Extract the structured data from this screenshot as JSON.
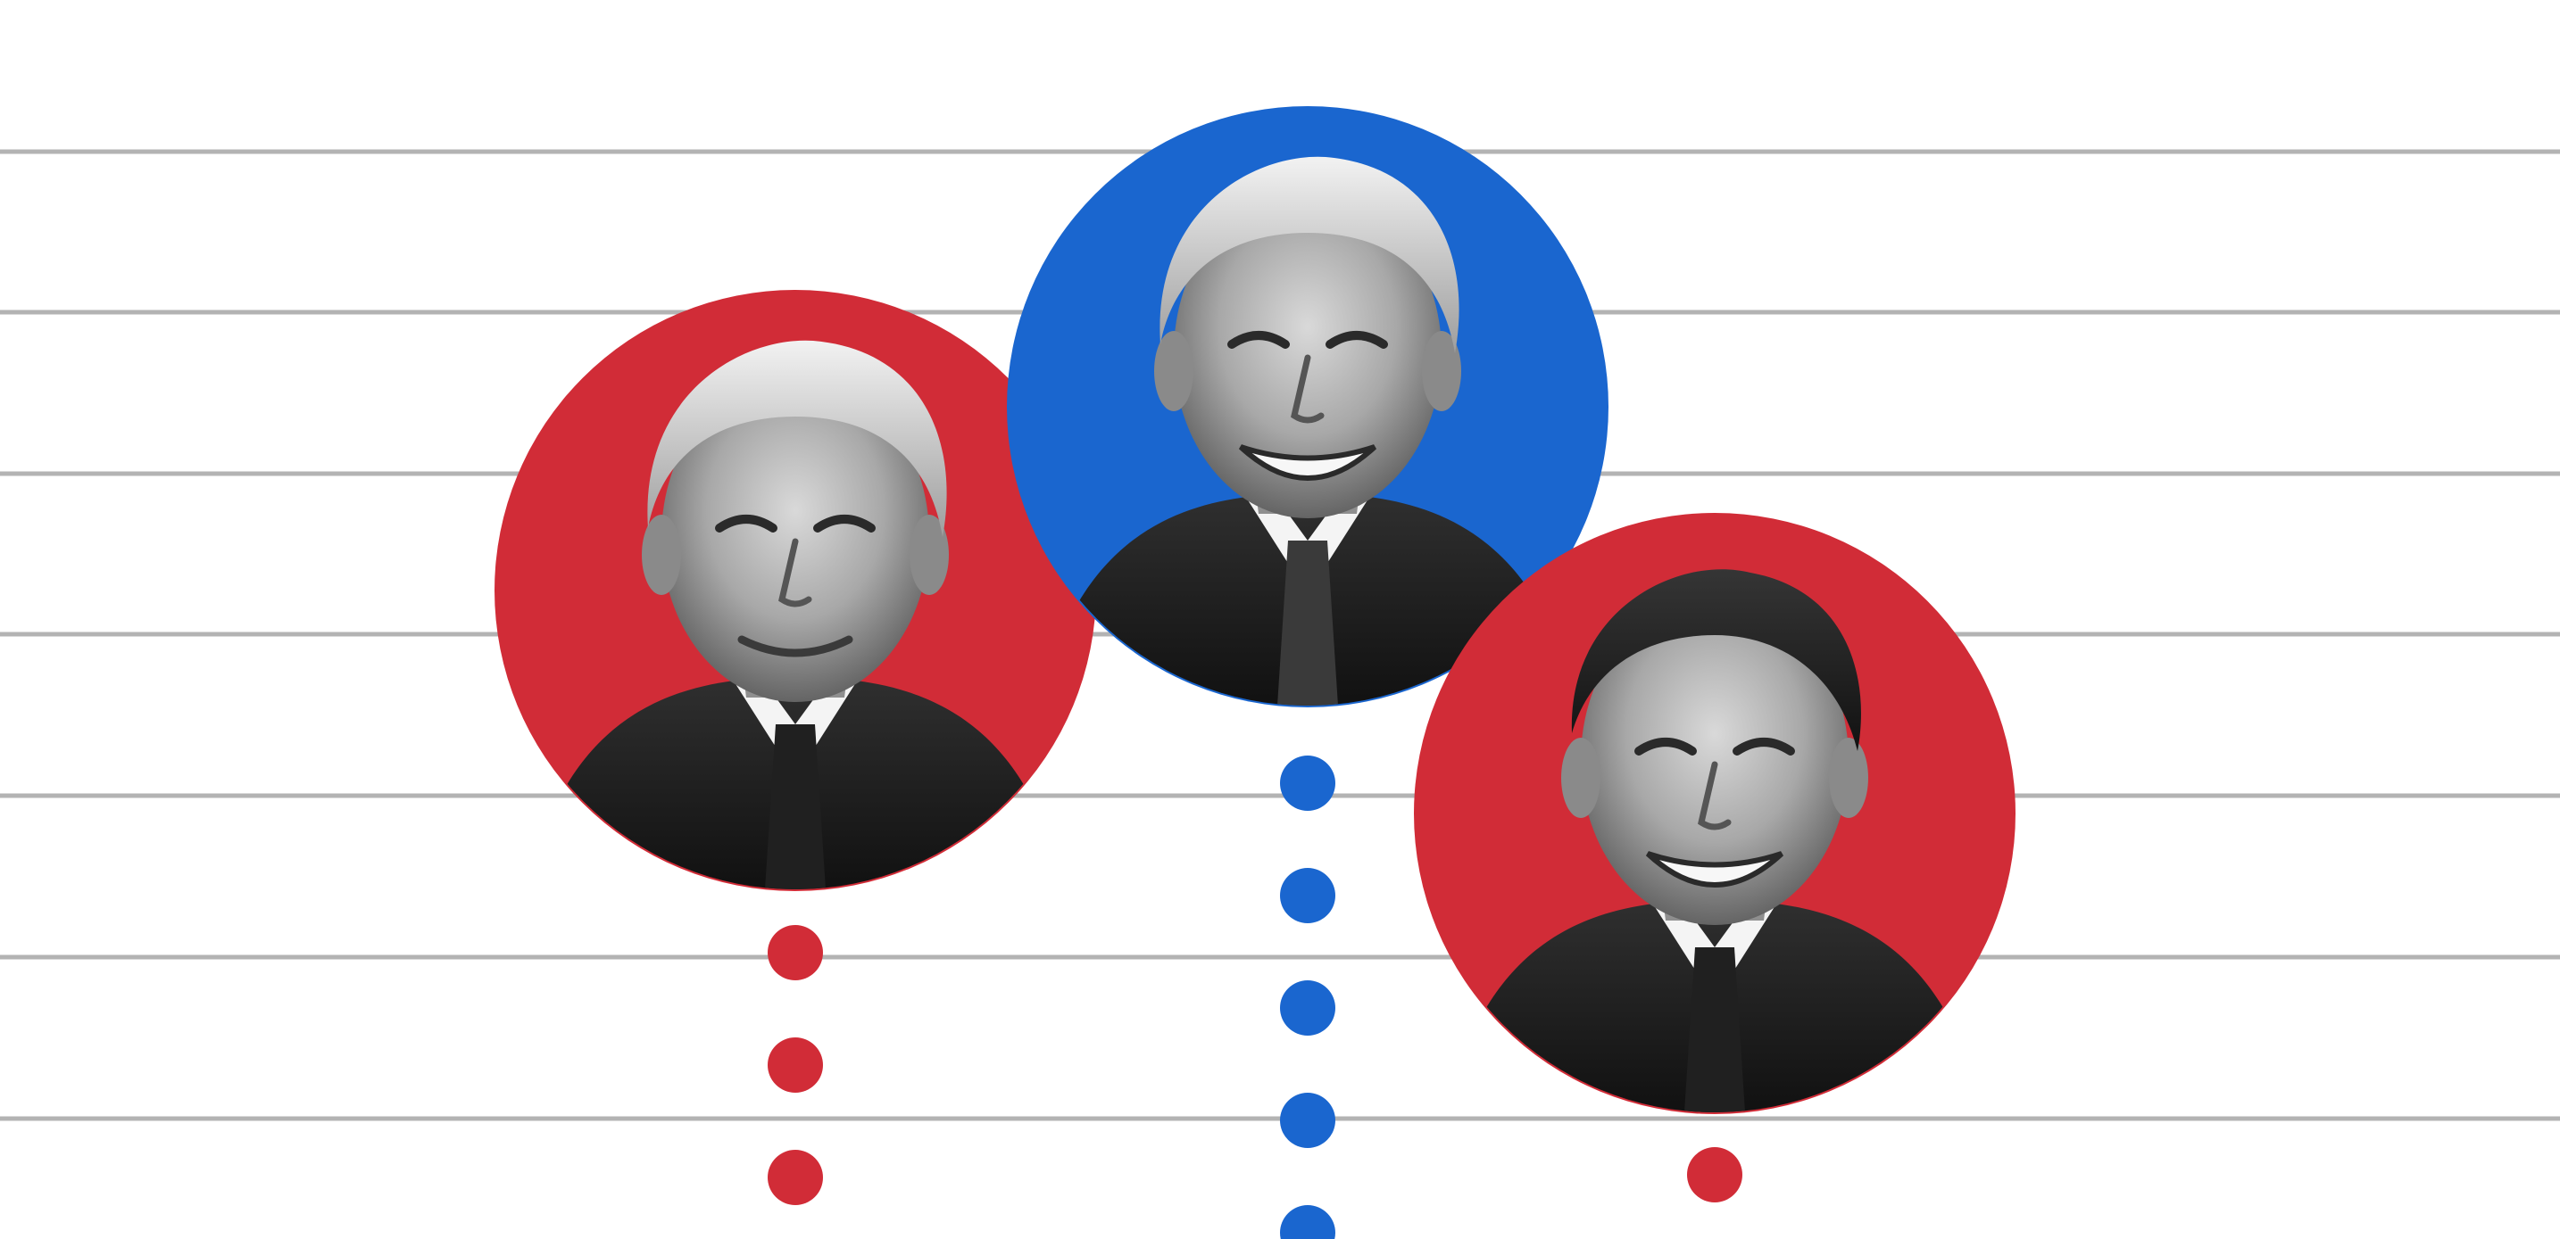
{
  "chart_data": {
    "type": "scatter",
    "grid": true,
    "title": "",
    "xlabel": "",
    "ylabel": "",
    "series": [
      {
        "count_dots": 3,
        "color": "#d12c37",
        "portrait_icon": "grayscale-portrait-icon",
        "portrait_ring_color": "#d12c37"
      },
      {
        "count_dots": 5,
        "color": "#1a66cf",
        "portrait_icon": "grayscale-portrait-icon",
        "portrait_ring_color": "#1a66cf"
      },
      {
        "count_dots": 1,
        "color": "#d12c37",
        "portrait_icon": "grayscale-portrait-icon",
        "portrait_ring_color": "#d12c37"
      }
    ]
  }
}
